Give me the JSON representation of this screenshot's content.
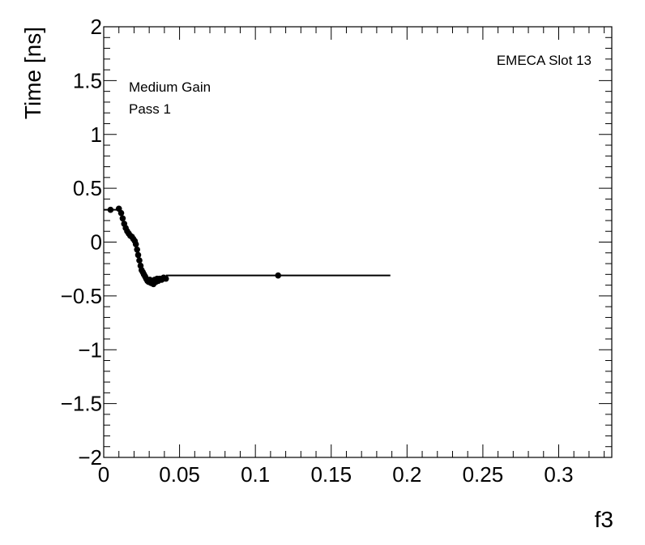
{
  "chart_data": {
    "type": "scatter",
    "xlabel": "f3",
    "ylabel": "Time [ns]",
    "xlim": [
      0,
      0.335
    ],
    "ylim": [
      -2,
      2
    ],
    "x_ticks": [
      0,
      0.05,
      0.1,
      0.15,
      0.2,
      0.25,
      0.3
    ],
    "x_tick_labels": [
      "0",
      "0.05",
      "0.1",
      "0.15",
      "0.2",
      "0.25",
      "0.3"
    ],
    "y_ticks": [
      -2,
      -1.5,
      -1,
      -0.5,
      0,
      0.5,
      1,
      1.5,
      2
    ],
    "y_tick_labels": [
      "−2",
      "−1.5",
      "−1",
      "−0.5",
      "0",
      "0.5",
      "1",
      "1.5",
      "2"
    ],
    "annotations": {
      "slot": "EMECA Slot 13",
      "gain": "Medium Gain",
      "pass": "Pass 1"
    },
    "series": [
      {
        "color": "#000000",
        "points": [
          {
            "x": 0.0045,
            "y": 0.3,
            "xerr": 0.0045
          },
          {
            "x": 0.01,
            "y": 0.31,
            "xerr": 0.001
          },
          {
            "x": 0.0115,
            "y": 0.27,
            "xerr": 0.0006
          },
          {
            "x": 0.0125,
            "y": 0.22,
            "xerr": 0.0005
          },
          {
            "x": 0.0135,
            "y": 0.17,
            "xerr": 0.0005
          },
          {
            "x": 0.0145,
            "y": 0.13,
            "xerr": 0.0005
          },
          {
            "x": 0.0155,
            "y": 0.1,
            "xerr": 0.0005
          },
          {
            "x": 0.0165,
            "y": 0.08,
            "xerr": 0.0005
          },
          {
            "x": 0.0175,
            "y": 0.06,
            "xerr": 0.0005
          },
          {
            "x": 0.0185,
            "y": 0.05,
            "xerr": 0.0005
          },
          {
            "x": 0.0195,
            "y": 0.03,
            "xerr": 0.0005
          },
          {
            "x": 0.0205,
            "y": 0.01,
            "xerr": 0.0005
          },
          {
            "x": 0.0212,
            "y": -0.02,
            "xerr": 0.0004
          },
          {
            "x": 0.022,
            "y": -0.07,
            "xerr": 0.0004
          },
          {
            "x": 0.0227,
            "y": -0.12,
            "xerr": 0.0004
          },
          {
            "x": 0.0235,
            "y": -0.17,
            "xerr": 0.0004
          },
          {
            "x": 0.0243,
            "y": -0.22,
            "xerr": 0.0004
          },
          {
            "x": 0.025,
            "y": -0.26,
            "xerr": 0.0004
          },
          {
            "x": 0.0258,
            "y": -0.28,
            "xerr": 0.0004
          },
          {
            "x": 0.0265,
            "y": -0.3,
            "xerr": 0.0004
          },
          {
            "x": 0.0273,
            "y": -0.32,
            "xerr": 0.0004
          },
          {
            "x": 0.028,
            "y": -0.34,
            "xerr": 0.0004
          },
          {
            "x": 0.0288,
            "y": -0.36,
            "xerr": 0.0004
          },
          {
            "x": 0.0296,
            "y": -0.37,
            "xerr": 0.0004
          },
          {
            "x": 0.0304,
            "y": -0.35,
            "xerr": 0.0004
          },
          {
            "x": 0.0312,
            "y": -0.38,
            "xerr": 0.0004
          },
          {
            "x": 0.032,
            "y": -0.36,
            "xerr": 0.0004
          },
          {
            "x": 0.0328,
            "y": -0.39,
            "xerr": 0.0004
          },
          {
            "x": 0.0336,
            "y": -0.35,
            "xerr": 0.0004
          },
          {
            "x": 0.0344,
            "y": -0.37,
            "xerr": 0.0004
          },
          {
            "x": 0.0352,
            "y": -0.34,
            "xerr": 0.0004
          },
          {
            "x": 0.036,
            "y": -0.36,
            "xerr": 0.0004
          },
          {
            "x": 0.037,
            "y": -0.34,
            "xerr": 0.0005
          },
          {
            "x": 0.0382,
            "y": -0.35,
            "xerr": 0.0006
          },
          {
            "x": 0.0395,
            "y": -0.33,
            "xerr": 0.0007
          },
          {
            "x": 0.041,
            "y": -0.34,
            "xerr": 0.0008
          },
          {
            "x": 0.115,
            "y": -0.31,
            "xerr": 0.074
          }
        ]
      }
    ]
  }
}
